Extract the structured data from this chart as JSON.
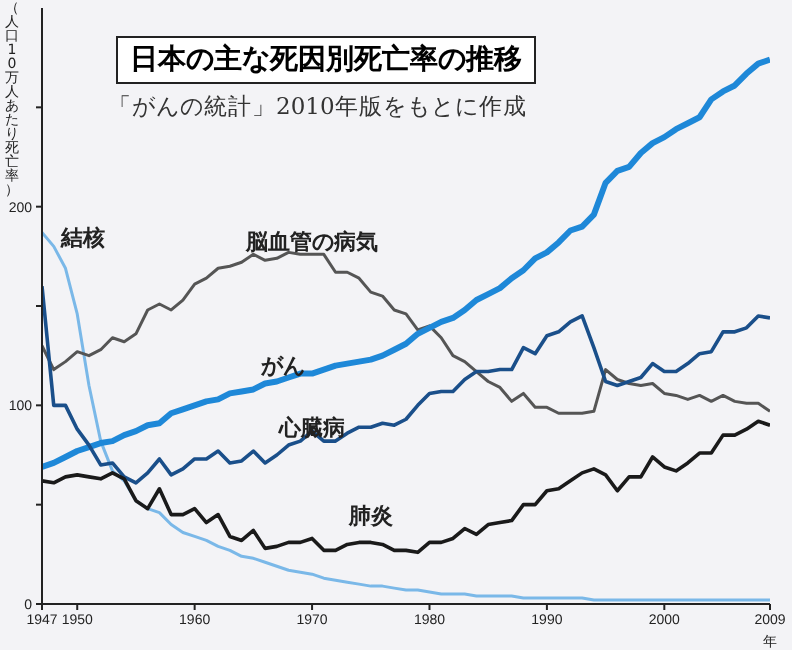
{
  "chart_data": {
    "type": "line",
    "title": "日本の主な死因別死亡率の推移",
    "subtitle": "「がんの統計」2010年版をもとに作成",
    "ylabel": "（人口10万人あたり死亡率）",
    "xlabel": "年",
    "x": [
      1947,
      1948,
      1949,
      1950,
      1951,
      1952,
      1953,
      1954,
      1955,
      1956,
      1957,
      1958,
      1959,
      1960,
      1961,
      1962,
      1963,
      1964,
      1965,
      1966,
      1967,
      1968,
      1969,
      1970,
      1971,
      1972,
      1973,
      1974,
      1975,
      1976,
      1977,
      1978,
      1979,
      1980,
      1981,
      1982,
      1983,
      1984,
      1985,
      1986,
      1987,
      1988,
      1989,
      1990,
      1991,
      1992,
      1993,
      1994,
      1995,
      1996,
      1997,
      1998,
      1999,
      2000,
      2001,
      2002,
      2003,
      2004,
      2005,
      2006,
      2007,
      2008,
      2009
    ],
    "series": [
      {
        "name": "結核",
        "color": "#7ab8e8",
        "values": [
          187,
          180,
          169,
          146,
          110,
          82,
          67,
          62,
          52,
          48,
          46,
          40,
          36,
          34,
          32,
          29,
          27,
          24,
          23,
          21,
          19,
          17,
          16,
          15,
          13,
          12,
          11,
          10,
          9,
          9,
          8,
          7,
          7,
          6,
          5,
          5,
          5,
          4,
          4,
          4,
          4,
          3,
          3,
          3,
          3,
          3,
          3,
          2,
          2,
          2,
          2,
          2,
          2,
          2,
          2,
          2,
          2,
          2,
          2,
          2,
          2,
          2,
          2
        ]
      },
      {
        "name": "脳血管の病気",
        "color": "#555555",
        "values": [
          130,
          118,
          122,
          127,
          125,
          128,
          134,
          132,
          136,
          148,
          151,
          148,
          153,
          161,
          164,
          169,
          170,
          172,
          176,
          173,
          174,
          177,
          176,
          176,
          176,
          167,
          167,
          164,
          157,
          155,
          148,
          146,
          138,
          140,
          134,
          125,
          122,
          117,
          112,
          109,
          102,
          106,
          99,
          99,
          96,
          96,
          96,
          97,
          118,
          113,
          111,
          110,
          111,
          106,
          105,
          103,
          105,
          102,
          105,
          102,
          101,
          101,
          97
        ]
      },
      {
        "name": "がん",
        "color": "#1e88d8",
        "values": [
          69,
          71,
          74,
          77,
          79,
          81,
          82,
          85,
          87,
          90,
          91,
          96,
          98,
          100,
          102,
          103,
          106,
          107,
          108,
          111,
          112,
          114,
          116,
          116,
          118,
          120,
          121,
          122,
          123,
          125,
          128,
          131,
          136,
          139,
          142,
          144,
          148,
          153,
          156,
          159,
          164,
          168,
          174,
          177,
          182,
          188,
          190,
          196,
          212,
          218,
          220,
          227,
          232,
          235,
          239,
          242,
          245,
          254,
          258,
          261,
          267,
          272,
          274
        ]
      },
      {
        "name": "心臓病",
        "color": "#1a4f8a",
        "values": [
          160,
          100,
          100,
          88,
          80,
          70,
          71,
          64,
          61,
          66,
          73,
          65,
          68,
          73,
          73,
          77,
          71,
          72,
          77,
          71,
          75,
          80,
          82,
          87,
          82,
          82,
          86,
          89,
          89,
          91,
          90,
          93,
          100,
          106,
          107,
          107,
          113,
          117,
          117,
          118,
          118,
          129,
          126,
          135,
          137,
          142,
          145,
          129,
          112,
          110,
          112,
          114,
          121,
          117,
          117,
          121,
          126,
          127,
          137,
          137,
          139,
          145,
          144
        ]
      },
      {
        "name": "肺炎",
        "color": "#1a1a1a",
        "values": [
          62,
          61,
          64,
          65,
          64,
          63,
          66,
          63,
          52,
          48,
          58,
          45,
          45,
          48,
          41,
          45,
          34,
          32,
          37,
          28,
          29,
          31,
          31,
          33,
          27,
          27,
          30,
          31,
          31,
          30,
          27,
          27,
          26,
          31,
          31,
          33,
          38,
          35,
          40,
          41,
          42,
          50,
          50,
          57,
          58,
          62,
          66,
          68,
          65,
          57,
          64,
          64,
          74,
          69,
          67,
          71,
          76,
          76,
          85,
          85,
          88,
          92,
          90
        ]
      }
    ],
    "xlim": [
      1947,
      2009
    ],
    "xticks": [
      1947,
      1950,
      1960,
      1970,
      1980,
      1990,
      2000,
      2009
    ],
    "ylim": [
      0,
      300
    ],
    "yticks": [
      0,
      {
        "value": 50,
        "label": null
      },
      100,
      {
        "value": 150,
        "label": null
      },
      200,
      {
        "value": 250,
        "label": null
      }
    ],
    "grid": false,
    "legend": false,
    "marker": "none",
    "line_style": "solid"
  }
}
